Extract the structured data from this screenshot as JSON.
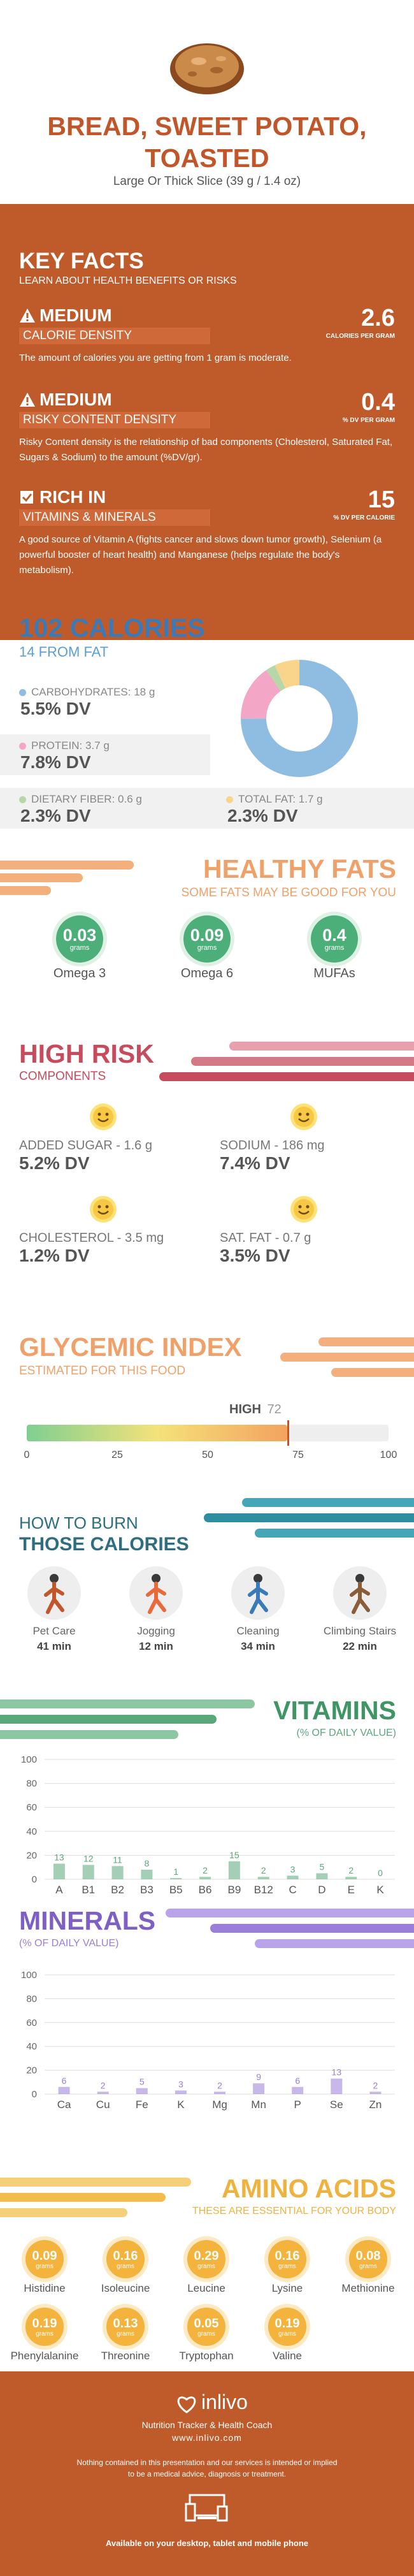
{
  "header": {
    "title_line1": "BREAD, SWEET POTATO,",
    "title_line2": "TOASTED",
    "serving": "Large Or Thick Slice (39 g / 1.4 oz)"
  },
  "key_facts": {
    "title": "KEY FACTS",
    "subtitle": "LEARN ABOUT HEALTH BENEFITS OR RISKS",
    "calorie_density": {
      "level": "MEDIUM",
      "label": "CALORIE DENSITY",
      "value": "2.6",
      "unit": "CALORIES PER GRAM",
      "desc": "The amount of calories you are getting from 1 gram is moderate."
    },
    "risky_content": {
      "level": "MEDIUM",
      "label": "RISKY CONTENT DENSITY",
      "value": "0.4",
      "unit": "% DV PER GRAM",
      "desc": "Risky Content density is the relationship of bad components (Cholesterol, Saturated Fat, Sugars & Sodium) to the amount (%DV/gr)."
    },
    "rich_in": {
      "level": "RICH IN",
      "label": "VITAMINS & MINERALS",
      "value": "15",
      "unit": "% DV PER CALORIE",
      "desc": "A good source of Vitamin A (fights cancer and slows down tumor growth), Selenium (a powerful booster of heart health) and Manganese (helps regulate the body's metabolism)."
    }
  },
  "calories": {
    "title": "102 CALORIES",
    "from_fat": "14 FROM FAT",
    "carbs_label": "CARBOHYDRATES: 18 g",
    "carbs_dv": "5.5% DV",
    "protein_label": "PROTEIN: 3.7 g",
    "protein_dv": "7.8% DV",
    "fiber_label": "DIETARY FIBER: 0.6 g",
    "fiber_dv": "2.3% DV",
    "fat_label": "TOTAL FAT: 1.7 g",
    "fat_dv": "2.3% DV",
    "colors": {
      "carbs": "#8fbde2",
      "protein": "#f4a6c6",
      "fiber": "#b6d7a8",
      "fat": "#f8d58b"
    }
  },
  "healthy_fats": {
    "title": "HEALTHY FATS",
    "subtitle": "SOME FATS MAY BE GOOD FOR YOU",
    "items": [
      {
        "value": "0.03",
        "unit": "grams",
        "label": "Omega 3"
      },
      {
        "value": "0.09",
        "unit": "grams",
        "label": "Omega 6"
      },
      {
        "value": "0.4",
        "unit": "grams",
        "label": "MUFAs"
      }
    ]
  },
  "high_risk": {
    "title": "HIGH RISK",
    "subtitle": "COMPONENTS",
    "items": [
      {
        "label": "ADDED SUGAR - 1.6 g",
        "value": "5.2% DV"
      },
      {
        "label": "SODIUM - 186 mg",
        "value": "7.4% DV"
      },
      {
        "label": "CHOLESTEROL - 3.5 mg",
        "value": "1.2% DV"
      },
      {
        "label": "SAT. FAT - 0.7 g",
        "value": "3.5% DV"
      }
    ]
  },
  "glycemic": {
    "title": "GLYCEMIC INDEX",
    "subtitle": "ESTIMATED FOR THIS FOOD",
    "level": "HIGH",
    "value": 72,
    "value_text": "72",
    "ticks": [
      "0",
      "25",
      "50",
      "75",
      "100"
    ]
  },
  "burn": {
    "title1": "HOW TO BURN",
    "title2": "THOSE CALORIES",
    "items": [
      {
        "label": "Pet Care",
        "minutes": "41 min"
      },
      {
        "label": "Jogging",
        "minutes": "12 min"
      },
      {
        "label": "Cleaning",
        "minutes": "34 min"
      },
      {
        "label": "Climbing Stairs",
        "minutes": "22 min"
      }
    ]
  },
  "chart_data": [
    {
      "type": "bar",
      "title": "VITAMINS",
      "subtitle": "(% OF DAILY VALUE)",
      "categories": [
        "A",
        "B1",
        "B2",
        "B3",
        "B5",
        "B6",
        "B9",
        "B12",
        "C",
        "D",
        "E",
        "K"
      ],
      "values": [
        13,
        12,
        11,
        8,
        1,
        2,
        15,
        2,
        3,
        5,
        2,
        0
      ],
      "ylim": [
        0,
        100
      ],
      "yticks": [
        "0",
        "20",
        "40",
        "60",
        "80",
        "100"
      ],
      "color": "#5aa87a"
    },
    {
      "type": "bar",
      "title": "MINERALS",
      "subtitle": "(% OF DAILY VALUE)",
      "categories": [
        "Ca",
        "Cu",
        "Fe",
        "K",
        "Mg",
        "Mn",
        "P",
        "Se",
        "Zn"
      ],
      "values": [
        6,
        2,
        5,
        3,
        2,
        9,
        6,
        13,
        2
      ],
      "ylim": [
        0,
        100
      ],
      "yticks": [
        "0",
        "20",
        "40",
        "60",
        "80",
        "100"
      ],
      "color": "#9b7ed9"
    }
  ],
  "amino": {
    "title": "AMINO ACIDS",
    "subtitle": "THESE ARE ESSENTIAL FOR YOUR BODY",
    "items": [
      {
        "value": "0.09",
        "unit": "grams",
        "label": "Histidine"
      },
      {
        "value": "0.16",
        "unit": "grams",
        "label": "Isoleucine"
      },
      {
        "value": "0.29",
        "unit": "grams",
        "label": "Leucine"
      },
      {
        "value": "0.16",
        "unit": "grams",
        "label": "Lysine"
      },
      {
        "value": "0.08",
        "unit": "grams",
        "label": "Methionine"
      },
      {
        "value": "0.19",
        "unit": "grams",
        "label": "Phenylalanine"
      },
      {
        "value": "0.13",
        "unit": "grams",
        "label": "Threonine"
      },
      {
        "value": "0.05",
        "unit": "grams",
        "label": "Tryptophan"
      },
      {
        "value": "0.19",
        "unit": "grams",
        "label": "Valine"
      }
    ]
  },
  "footer": {
    "brand": "inlivo",
    "tagline": "Nutrition Tracker & Health Coach",
    "url": "www.inlivo.com",
    "disclaimer1": "Nothing contained in this presentation and our services is intended or implied",
    "disclaimer2": "to be a medical advice, diagnosis or treatment.",
    "available": "Available on your desktop, tablet and mobile phone"
  }
}
